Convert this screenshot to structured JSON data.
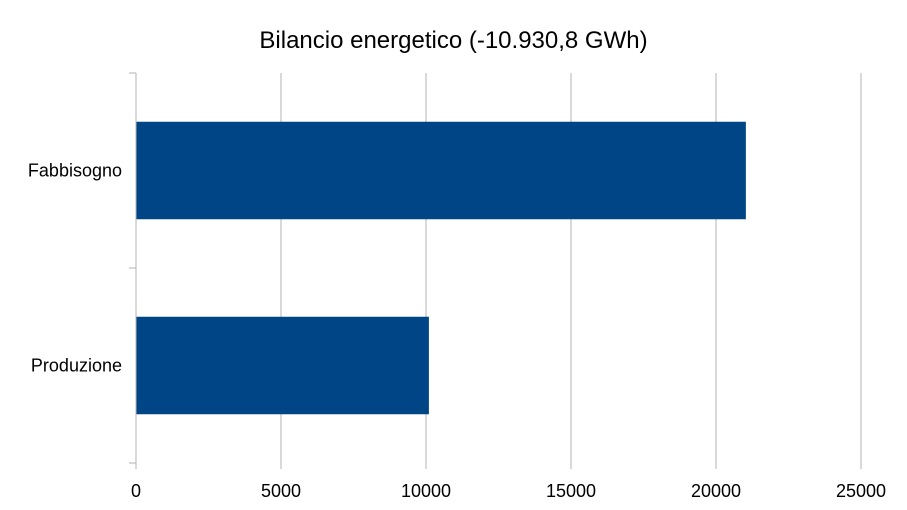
{
  "chart_data": {
    "type": "bar",
    "orientation": "horizontal",
    "title": "Bilancio energetico (-10.930,8 GWh)",
    "xlabel": "",
    "ylabel": "",
    "categories": [
      "Fabbisogno",
      "Produzione"
    ],
    "values": [
      21030,
      10100
    ],
    "xlim": [
      0,
      25000
    ],
    "xticks": [
      0,
      5000,
      10000,
      15000,
      20000,
      25000
    ],
    "grid": "vertical",
    "legend": "none",
    "bar_color": "#004586",
    "grid_color": "#b3b3b3"
  }
}
